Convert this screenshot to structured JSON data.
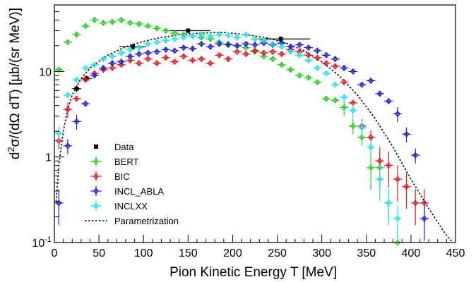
{
  "chart_data": {
    "type": "scatter",
    "title": "",
    "xlabel": "Pion Kinetic Energy T [MeV]",
    "ylabel": "d²σ/(dΩ dT) [µb/(sr MeV)]",
    "xlim": [
      0,
      450
    ],
    "ylim": [
      0.1,
      60
    ],
    "yscale": "log",
    "grid": false,
    "legend_position": "bottom-left",
    "x_ticks": [
      {
        "value": 0,
        "label": "0"
      },
      {
        "value": 50,
        "label": "50"
      },
      {
        "value": 100,
        "label": "100"
      },
      {
        "value": 150,
        "label": "150"
      },
      {
        "value": 200,
        "label": "200"
      },
      {
        "value": 250,
        "label": "250"
      },
      {
        "value": 300,
        "label": "300"
      },
      {
        "value": 350,
        "label": "350"
      },
      {
        "value": 400,
        "label": "400"
      },
      {
        "value": 450,
        "label": "450"
      }
    ],
    "y_ticks": [
      {
        "value": 0.1,
        "label": "10",
        "sup": "-1"
      },
      {
        "value": 1,
        "label": "1",
        "sup": ""
      },
      {
        "value": 10,
        "label": "10",
        "sup": ""
      }
    ],
    "series": [
      {
        "name": "Data",
        "color": "#000000",
        "marker": "square",
        "points": [
          {
            "x": 25,
            "y": 6.3,
            "xerr": 5,
            "yerr": 0.6
          },
          {
            "x": 36,
            "y": 8.3,
            "xerr": 6,
            "yerr": 0.6
          },
          {
            "x": 88,
            "y": 19.5,
            "xerr": 15,
            "yerr": 1.5
          },
          {
            "x": 150,
            "y": 30,
            "xerr": 25,
            "yerr": 2
          },
          {
            "x": 254,
            "y": 24,
            "xerr": 33,
            "yerr": 1.8
          }
        ]
      },
      {
        "name": "BERT",
        "color": "#22cc22",
        "marker": "diamond",
        "points": [
          {
            "x": 5,
            "y": 10.5
          },
          {
            "x": 15,
            "y": 22
          },
          {
            "x": 25,
            "y": 27
          },
          {
            "x": 35,
            "y": 34
          },
          {
            "x": 45,
            "y": 40
          },
          {
            "x": 55,
            "y": 37
          },
          {
            "x": 65,
            "y": 38
          },
          {
            "x": 75,
            "y": 40
          },
          {
            "x": 85,
            "y": 37
          },
          {
            "x": 95,
            "y": 36
          },
          {
            "x": 105,
            "y": 34
          },
          {
            "x": 115,
            "y": 32
          },
          {
            "x": 125,
            "y": 30
          },
          {
            "x": 135,
            "y": 28
          },
          {
            "x": 145,
            "y": 27
          },
          {
            "x": 155,
            "y": 26
          },
          {
            "x": 165,
            "y": 25
          },
          {
            "x": 175,
            "y": 24
          },
          {
            "x": 185,
            "y": 22
          },
          {
            "x": 195,
            "y": 21
          },
          {
            "x": 205,
            "y": 20
          },
          {
            "x": 215,
            "y": 19
          },
          {
            "x": 225,
            "y": 17
          },
          {
            "x": 235,
            "y": 15
          },
          {
            "x": 245,
            "y": 14
          },
          {
            "x": 255,
            "y": 12
          },
          {
            "x": 265,
            "y": 10.5
          },
          {
            "x": 275,
            "y": 9
          },
          {
            "x": 285,
            "y": 8.5
          },
          {
            "x": 295,
            "y": 7.5
          },
          {
            "x": 305,
            "y": 4.8
          },
          {
            "x": 315,
            "y": 4.6
          },
          {
            "x": 325,
            "y": 3.8
          },
          {
            "x": 335,
            "y": 2.3
          },
          {
            "x": 345,
            "y": 1.7
          },
          {
            "x": 355,
            "y": 0.75
          },
          {
            "x": 365,
            "y": 0.75
          },
          {
            "x": 375,
            "y": 0.29
          },
          {
            "x": 385,
            "y": 0.1
          }
        ]
      },
      {
        "name": "BIC",
        "color": "#e8141c",
        "marker": "diamond",
        "points": [
          {
            "x": 5,
            "y": 1.55
          },
          {
            "x": 15,
            "y": 3.6
          },
          {
            "x": 25,
            "y": 4.8
          },
          {
            "x": 35,
            "y": 8.0
          },
          {
            "x": 45,
            "y": 9.5
          },
          {
            "x": 55,
            "y": 10.5
          },
          {
            "x": 65,
            "y": 11.0
          },
          {
            "x": 75,
            "y": 12.0
          },
          {
            "x": 85,
            "y": 13.5
          },
          {
            "x": 95,
            "y": 12.5
          },
          {
            "x": 105,
            "y": 14.0
          },
          {
            "x": 115,
            "y": 12.5
          },
          {
            "x": 125,
            "y": 14.5
          },
          {
            "x": 135,
            "y": 13.0
          },
          {
            "x": 145,
            "y": 15.0
          },
          {
            "x": 155,
            "y": 13.5
          },
          {
            "x": 165,
            "y": 14.0
          },
          {
            "x": 175,
            "y": 12.5
          },
          {
            "x": 185,
            "y": 15.5
          },
          {
            "x": 195,
            "y": 14.0
          },
          {
            "x": 205,
            "y": 17.0
          },
          {
            "x": 215,
            "y": 16.0
          },
          {
            "x": 225,
            "y": 17.5
          },
          {
            "x": 235,
            "y": 16.5
          },
          {
            "x": 245,
            "y": 17.0
          },
          {
            "x": 255,
            "y": 16.0
          },
          {
            "x": 265,
            "y": 18.0
          },
          {
            "x": 275,
            "y": 17.0
          },
          {
            "x": 285,
            "y": 15.5
          },
          {
            "x": 295,
            "y": 14.5
          },
          {
            "x": 305,
            "y": 12.5
          },
          {
            "x": 315,
            "y": 11.5
          },
          {
            "x": 325,
            "y": 7.5
          },
          {
            "x": 335,
            "y": 4.3
          },
          {
            "x": 345,
            "y": 2.3
          },
          {
            "x": 355,
            "y": 1.7
          },
          {
            "x": 365,
            "y": 0.9
          },
          {
            "x": 375,
            "y": 0.8
          },
          {
            "x": 385,
            "y": 0.55
          },
          {
            "x": 395,
            "y": 0.45
          },
          {
            "x": 405,
            "y": 0.29
          },
          {
            "x": 415,
            "y": 0.29
          }
        ]
      },
      {
        "name": "INCL_ABLA",
        "color": "#1a1ad4",
        "marker": "diamond",
        "points": [
          {
            "x": 5,
            "y": 0.29
          },
          {
            "x": 15,
            "y": 1.35
          },
          {
            "x": 25,
            "y": 2.6
          },
          {
            "x": 35,
            "y": 4.2
          },
          {
            "x": 45,
            "y": 9.0
          },
          {
            "x": 55,
            "y": 11.0
          },
          {
            "x": 65,
            "y": 12.5
          },
          {
            "x": 75,
            "y": 13.0
          },
          {
            "x": 85,
            "y": 15.0
          },
          {
            "x": 95,
            "y": 16.0
          },
          {
            "x": 105,
            "y": 16.5
          },
          {
            "x": 115,
            "y": 17.0
          },
          {
            "x": 125,
            "y": 18.0
          },
          {
            "x": 135,
            "y": 17.5
          },
          {
            "x": 145,
            "y": 19.0
          },
          {
            "x": 155,
            "y": 18.5
          },
          {
            "x": 165,
            "y": 21.0
          },
          {
            "x": 175,
            "y": 19.5
          },
          {
            "x": 185,
            "y": 21.0
          },
          {
            "x": 195,
            "y": 20.5
          },
          {
            "x": 205,
            "y": 20.0
          },
          {
            "x": 215,
            "y": 21.0
          },
          {
            "x": 225,
            "y": 20.5
          },
          {
            "x": 235,
            "y": 21.5
          },
          {
            "x": 245,
            "y": 20.5
          },
          {
            "x": 255,
            "y": 21.5
          },
          {
            "x": 265,
            "y": 19.5
          },
          {
            "x": 275,
            "y": 20.5
          },
          {
            "x": 285,
            "y": 19.0
          },
          {
            "x": 295,
            "y": 17.5
          },
          {
            "x": 305,
            "y": 15.5
          },
          {
            "x": 315,
            "y": 14.0
          },
          {
            "x": 325,
            "y": 11.0
          },
          {
            "x": 335,
            "y": 10.0
          },
          {
            "x": 345,
            "y": 7.0
          },
          {
            "x": 355,
            "y": 7.8
          },
          {
            "x": 365,
            "y": 5.5
          },
          {
            "x": 375,
            "y": 4.5
          },
          {
            "x": 385,
            "y": 3.2
          },
          {
            "x": 395,
            "y": 1.85
          },
          {
            "x": 405,
            "y": 1.05
          },
          {
            "x": 415,
            "y": 0.19
          }
        ]
      },
      {
        "name": "INCLXX",
        "color": "#22e0ee",
        "marker": "diamond",
        "points": [
          {
            "x": 5,
            "y": 1.9
          },
          {
            "x": 15,
            "y": 5.3
          },
          {
            "x": 25,
            "y": 8.0
          },
          {
            "x": 35,
            "y": 11.0
          },
          {
            "x": 45,
            "y": 12.0
          },
          {
            "x": 55,
            "y": 14.0
          },
          {
            "x": 65,
            "y": 15.0
          },
          {
            "x": 75,
            "y": 16.5
          },
          {
            "x": 85,
            "y": 18.0
          },
          {
            "x": 95,
            "y": 19.0
          },
          {
            "x": 105,
            "y": 21.0
          },
          {
            "x": 115,
            "y": 22.0
          },
          {
            "x": 125,
            "y": 23.0
          },
          {
            "x": 135,
            "y": 24.0
          },
          {
            "x": 145,
            "y": 25.0
          },
          {
            "x": 155,
            "y": 26.0
          },
          {
            "x": 165,
            "y": 27.0
          },
          {
            "x": 175,
            "y": 26.0
          },
          {
            "x": 185,
            "y": 27.0
          },
          {
            "x": 195,
            "y": 26.5
          },
          {
            "x": 205,
            "y": 25.0
          },
          {
            "x": 215,
            "y": 27.0
          },
          {
            "x": 225,
            "y": 24.0
          },
          {
            "x": 235,
            "y": 23.0
          },
          {
            "x": 245,
            "y": 21.0
          },
          {
            "x": 255,
            "y": 19.5
          },
          {
            "x": 265,
            "y": 17.0
          },
          {
            "x": 275,
            "y": 15.5
          },
          {
            "x": 285,
            "y": 13.5
          },
          {
            "x": 295,
            "y": 11.0
          },
          {
            "x": 305,
            "y": 9.5
          },
          {
            "x": 315,
            "y": 7.0
          },
          {
            "x": 325,
            "y": 5.0
          },
          {
            "x": 335,
            "y": 3.5
          },
          {
            "x": 345,
            "y": 2.2
          },
          {
            "x": 355,
            "y": 1.3
          },
          {
            "x": 365,
            "y": 0.55
          },
          {
            "x": 375,
            "y": 0.29
          },
          {
            "x": 385,
            "y": 0.19
          }
        ]
      }
    ],
    "curve": {
      "name": "Parametrization",
      "color": "#000000",
      "style": "dotted",
      "points": [
        [
          2,
          0.3
        ],
        [
          5,
          0.8
        ],
        [
          10,
          2.0
        ],
        [
          15,
          3.6
        ],
        [
          20,
          5.3
        ],
        [
          30,
          8.3
        ],
        [
          40,
          11.0
        ],
        [
          60,
          15.5
        ],
        [
          80,
          19.5
        ],
        [
          100,
          22.5
        ],
        [
          120,
          25.0
        ],
        [
          140,
          27.0
        ],
        [
          160,
          28.0
        ],
        [
          180,
          28.5
        ],
        [
          190,
          28.5
        ],
        [
          200,
          28.0
        ],
        [
          220,
          26.5
        ],
        [
          240,
          24.5
        ],
        [
          260,
          21.5
        ],
        [
          280,
          17.5
        ],
        [
          300,
          13.0
        ],
        [
          320,
          8.8
        ],
        [
          340,
          5.3
        ],
        [
          360,
          2.8
        ],
        [
          380,
          1.3
        ],
        [
          400,
          0.55
        ],
        [
          420,
          0.25
        ],
        [
          440,
          0.12
        ],
        [
          447,
          0.1
        ]
      ]
    }
  }
}
